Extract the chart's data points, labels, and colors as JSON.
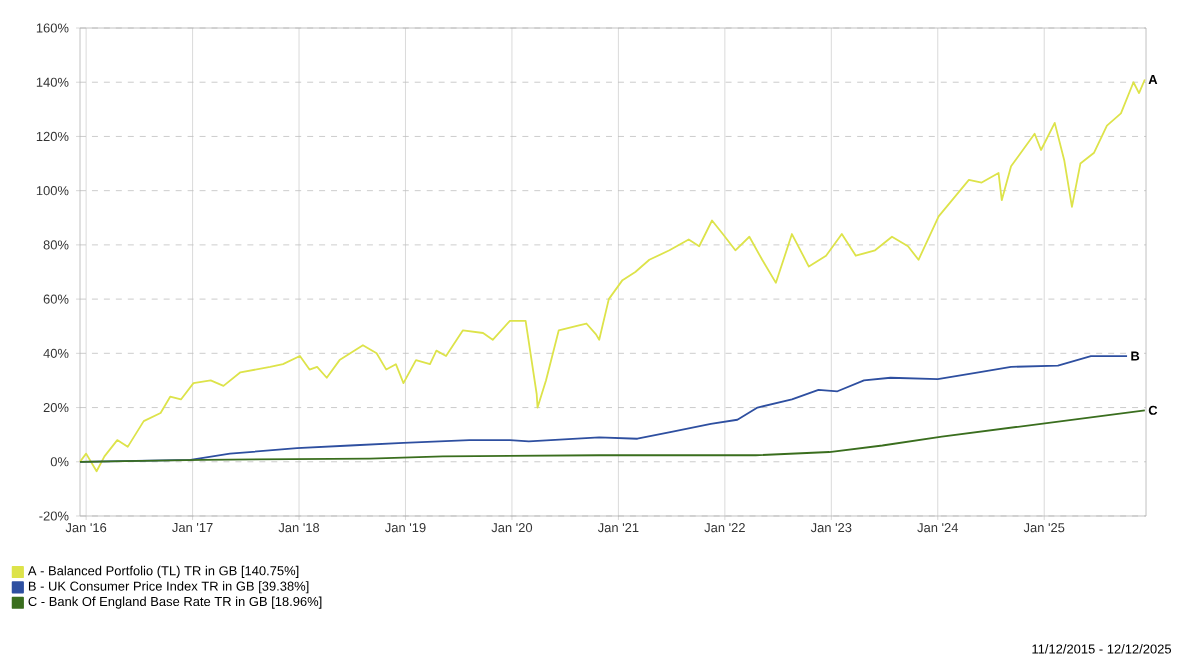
{
  "chart_data": {
    "type": "line",
    "xlim": [
      "2015-12-11",
      "2025-12-16"
    ],
    "ylim": [
      -20,
      160
    ],
    "xticks": [
      {
        "value": "2016-01-01",
        "label": "Jan '16"
      },
      {
        "value": "2017-01-01",
        "label": "Jan '17"
      },
      {
        "value": "2018-01-01",
        "label": "Jan '18"
      },
      {
        "value": "2019-01-01",
        "label": "Jan '19"
      },
      {
        "value": "2020-01-01",
        "label": "Jan '20"
      },
      {
        "value": "2021-01-01",
        "label": "Jan '21"
      },
      {
        "value": "2022-01-01",
        "label": "Jan '22"
      },
      {
        "value": "2023-01-01",
        "label": "Jan '23"
      },
      {
        "value": "2024-01-01",
        "label": "Jan '24"
      },
      {
        "value": "2025-01-01",
        "label": "Jan '25"
      }
    ],
    "yticks": [
      {
        "value": -20,
        "label": "-20%"
      },
      {
        "value": 0,
        "label": "0%"
      },
      {
        "value": 20,
        "label": "20%"
      },
      {
        "value": 40,
        "label": "40%"
      },
      {
        "value": 60,
        "label": "60%"
      },
      {
        "value": 80,
        "label": "80%"
      },
      {
        "value": 100,
        "label": "100%"
      },
      {
        "value": 120,
        "label": "120%"
      },
      {
        "value": 140,
        "label": "140%"
      },
      {
        "value": 160,
        "label": "160%"
      }
    ],
    "grid": true,
    "legend": "bottom",
    "marker": "none",
    "line_style": "solid",
    "series": [
      {
        "name": "A - Balanced Portfolio (TL) TR in GB [140.75%]",
        "color": "#dde34a",
        "x": [
          "2015-12-11",
          "2016-01-01",
          "2016-02-06",
          "2016-03-04",
          "2016-04-17",
          "2016-05-23",
          "2016-07-17",
          "2016-09-13",
          "2016-10-16",
          "2016-11-22",
          "2017-01-04",
          "2017-03-04",
          "2017-04-17",
          "2017-06-14",
          "2017-09-24",
          "2017-11-07",
          "2018-01-04",
          "2018-02-06",
          "2018-03-04",
          "2018-04-06",
          "2018-05-20",
          "2018-08-08",
          "2018-09-24",
          "2018-10-27",
          "2018-11-29",
          "2018-12-25",
          "2019-02-06",
          "2019-03-26",
          "2019-04-17",
          "2019-05-20",
          "2019-07-17",
          "2019-09-24",
          "2019-10-27",
          "2019-12-25",
          "2020-02-17",
          "2020-03-26",
          "2020-03-29",
          "2020-04-27",
          "2020-06-10",
          "2020-08-08",
          "2020-09-13",
          "2020-10-16",
          "2020-10-27",
          "2020-11-29",
          "2021-01-15",
          "2021-02-28",
          "2021-04-17",
          "2021-06-25",
          "2021-08-30",
          "2021-10-05",
          "2021-11-18",
          "2021-12-25",
          "2022-02-06",
          "2022-03-26",
          "2022-05-09",
          "2022-06-25",
          "2022-08-19",
          "2022-10-16",
          "2022-12-14",
          "2023-02-06",
          "2023-03-26",
          "2023-05-31",
          "2023-07-28",
          "2023-09-21",
          "2023-10-27",
          "2024-01-04",
          "2024-04-17",
          "2024-05-31",
          "2024-07-28",
          "2024-08-08",
          "2024-09-09",
          "2024-11-29",
          "2024-12-21",
          "2025-02-06",
          "2025-03-11",
          "2025-04-06",
          "2025-05-05",
          "2025-06-21",
          "2025-08-04",
          "2025-09-21",
          "2025-11-03",
          "2025-11-22",
          "2025-12-12"
        ],
        "values": [
          0,
          3,
          -3.5,
          2,
          8,
          5.5,
          15,
          18,
          24,
          23,
          29,
          30,
          28,
          33,
          35,
          36,
          39,
          34,
          35,
          31,
          37.5,
          43,
          40,
          34,
          36,
          29,
          37.5,
          36,
          41,
          39,
          48.5,
          47.5,
          45,
          52,
          52,
          25,
          20,
          30,
          48.5,
          50,
          51,
          47,
          45,
          60,
          67,
          70,
          74.5,
          78,
          82,
          79.5,
          89,
          84,
          78,
          83,
          74.5,
          66,
          84,
          72,
          76,
          84,
          76,
          78,
          83,
          79.5,
          74.5,
          90.5,
          104,
          103,
          106.5,
          96.5,
          109,
          121,
          115,
          125,
          111,
          94,
          110,
          114,
          124,
          128.5,
          140,
          136,
          141
        ]
      },
      {
        "name": "B - UK Consumer Price Index TR in GB [39.38%]",
        "color": "#2e4fa0",
        "x": [
          "2015-12-11",
          "2016-12-25",
          "2017-05-09",
          "2017-12-25",
          "2018-06-25",
          "2018-12-25",
          "2019-08-08",
          "2019-12-25",
          "2020-02-28",
          "2020-10-27",
          "2021-03-07",
          "2021-07-02",
          "2021-11-14",
          "2022-02-13",
          "2022-04-23",
          "2022-08-19",
          "2022-11-18",
          "2023-01-22",
          "2023-04-23",
          "2023-07-23",
          "2024-01-01",
          "2024-05-20",
          "2024-09-09",
          "2025-02-17",
          "2025-06-10",
          "2025-10-12"
        ],
        "values": [
          0,
          0.7,
          3,
          5,
          6,
          7,
          8,
          8,
          7.5,
          9,
          8.5,
          11,
          14,
          15.5,
          20,
          23,
          26.5,
          26,
          30,
          31,
          30.5,
          33,
          35,
          35.5,
          39,
          39
        ]
      },
      {
        "name": "C - Bank Of England Base Rate TR in GB [18.96%]",
        "color": "#3a6e1e",
        "x": [
          "2015-12-11",
          "2017-02-06",
          "2018-09-01",
          "2019-05-09",
          "2020-10-27",
          "2022-04-17",
          "2022-12-25",
          "2023-06-25",
          "2024-01-15",
          "2024-12-21",
          "2025-12-12"
        ],
        "values": [
          0,
          0.7,
          1.2,
          2,
          2.4,
          2.4,
          3.6,
          6,
          9.3,
          14,
          19
        ]
      }
    ],
    "annotations": [
      {
        "text": "A",
        "x": "2025-12-12",
        "y": 141
      },
      {
        "text": "B",
        "x": "2025-10-12",
        "y": 39
      },
      {
        "text": "C",
        "x": "2025-12-12",
        "y": 19
      },
      "11/12/2015 - 12/12/2025"
    ]
  }
}
